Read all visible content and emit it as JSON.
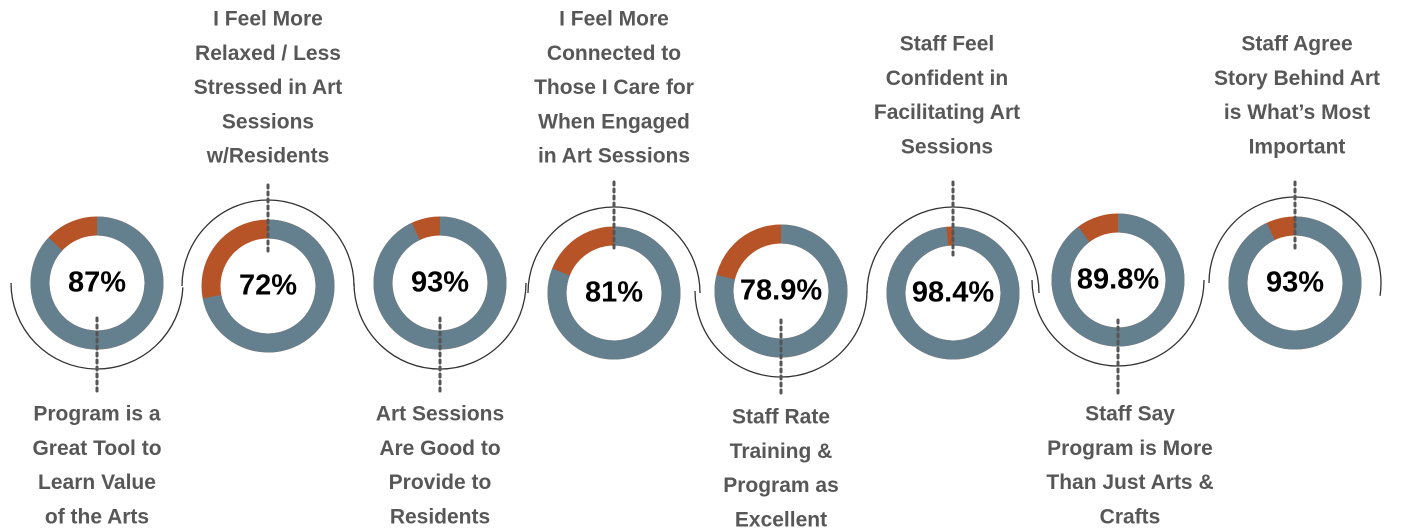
{
  "chart_data": [
    {
      "type": "donut",
      "label": [
        "Program is a",
        "Great Tool to",
        "Learn Value",
        "of the Arts"
      ],
      "values": [
        87
      ],
      "value_labels": [
        "87%"
      ],
      "color": "#64808f",
      "rest_color": "#b65428"
    },
    {
      "type": "donut",
      "label": [
        "I Feel More",
        "Relaxed / Less",
        "Stressed in Art",
        "Sessions",
        "w/Residents"
      ],
      "values": [
        72
      ],
      "value_labels": [
        "72%"
      ],
      "color": "#64808f",
      "rest_color": "#b65428"
    },
    {
      "type": "donut",
      "label": [
        "Art Sessions",
        "Are Good to",
        "Provide to",
        "Residents"
      ],
      "values": [
        93
      ],
      "value_labels": [
        "93%"
      ],
      "color": "#64808f",
      "rest_color": "#b65428"
    },
    {
      "type": "donut",
      "label": [
        "I Feel More",
        "Connected to",
        "Those I Care for",
        "When Engaged",
        "in Art Sessions"
      ],
      "values": [
        81
      ],
      "value_labels": [
        "81%"
      ],
      "color": "#64808f",
      "rest_color": "#b65428"
    },
    {
      "type": "donut",
      "label": [
        "Staff Rate",
        "Training &",
        "Program as",
        "Excellent"
      ],
      "values": [
        78.9
      ],
      "value_labels": [
        "78.9%"
      ],
      "color": "#64808f",
      "rest_color": "#b65428"
    },
    {
      "type": "donut",
      "label": [
        "Staff Feel",
        "Confident in",
        "Facilitating Art",
        "Sessions"
      ],
      "values": [
        98.4
      ],
      "value_labels": [
        "98.4%"
      ],
      "color": "#64808f",
      "rest_color": "#b65428"
    },
    {
      "type": "donut",
      "label": [
        "Staff Say",
        "Program is More",
        "Than Just Arts &",
        "Crafts"
      ],
      "values": [
        89.8
      ],
      "value_labels": [
        "89.8%"
      ],
      "color": "#64808f",
      "rest_color": "#b65428"
    },
    {
      "type": "donut",
      "label": [
        "Staff Agree",
        "Story Behind Art",
        "is What’s Most",
        "Important"
      ],
      "values": [
        93
      ],
      "value_labels": [
        "93%"
      ],
      "color": "#64808f",
      "rest_color": "#b65428"
    }
  ]
}
